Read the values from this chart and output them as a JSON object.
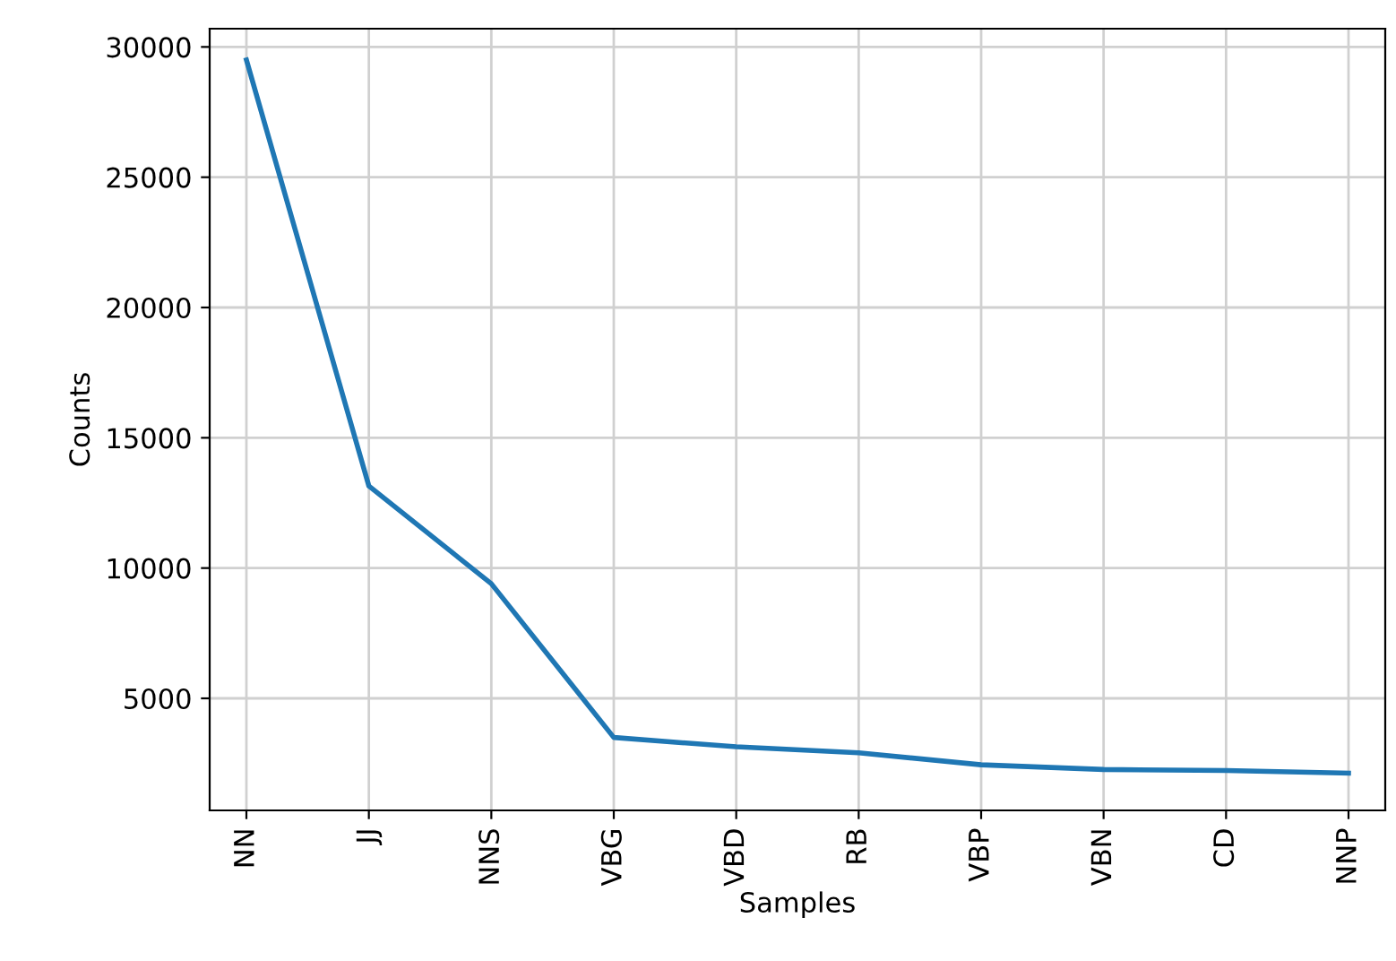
{
  "chart_data": {
    "type": "line",
    "xlabel": "Samples",
    "ylabel": "Counts",
    "categories": [
      "NN",
      "JJ",
      "NNS",
      "VBG",
      "VBD",
      "RB",
      "VBP",
      "VBN",
      "CD",
      "NNP"
    ],
    "series": [
      {
        "color": "#1f77b4",
        "values": [
          29500,
          13150,
          9400,
          3500,
          3140,
          2910,
          2450,
          2270,
          2230,
          2130
        ]
      }
    ],
    "ylim": [
      700,
      30700
    ],
    "yticks": [
      5000,
      10000,
      15000,
      20000,
      25000,
      30000
    ],
    "grid": true,
    "legend": false,
    "line_style": "solid"
  }
}
